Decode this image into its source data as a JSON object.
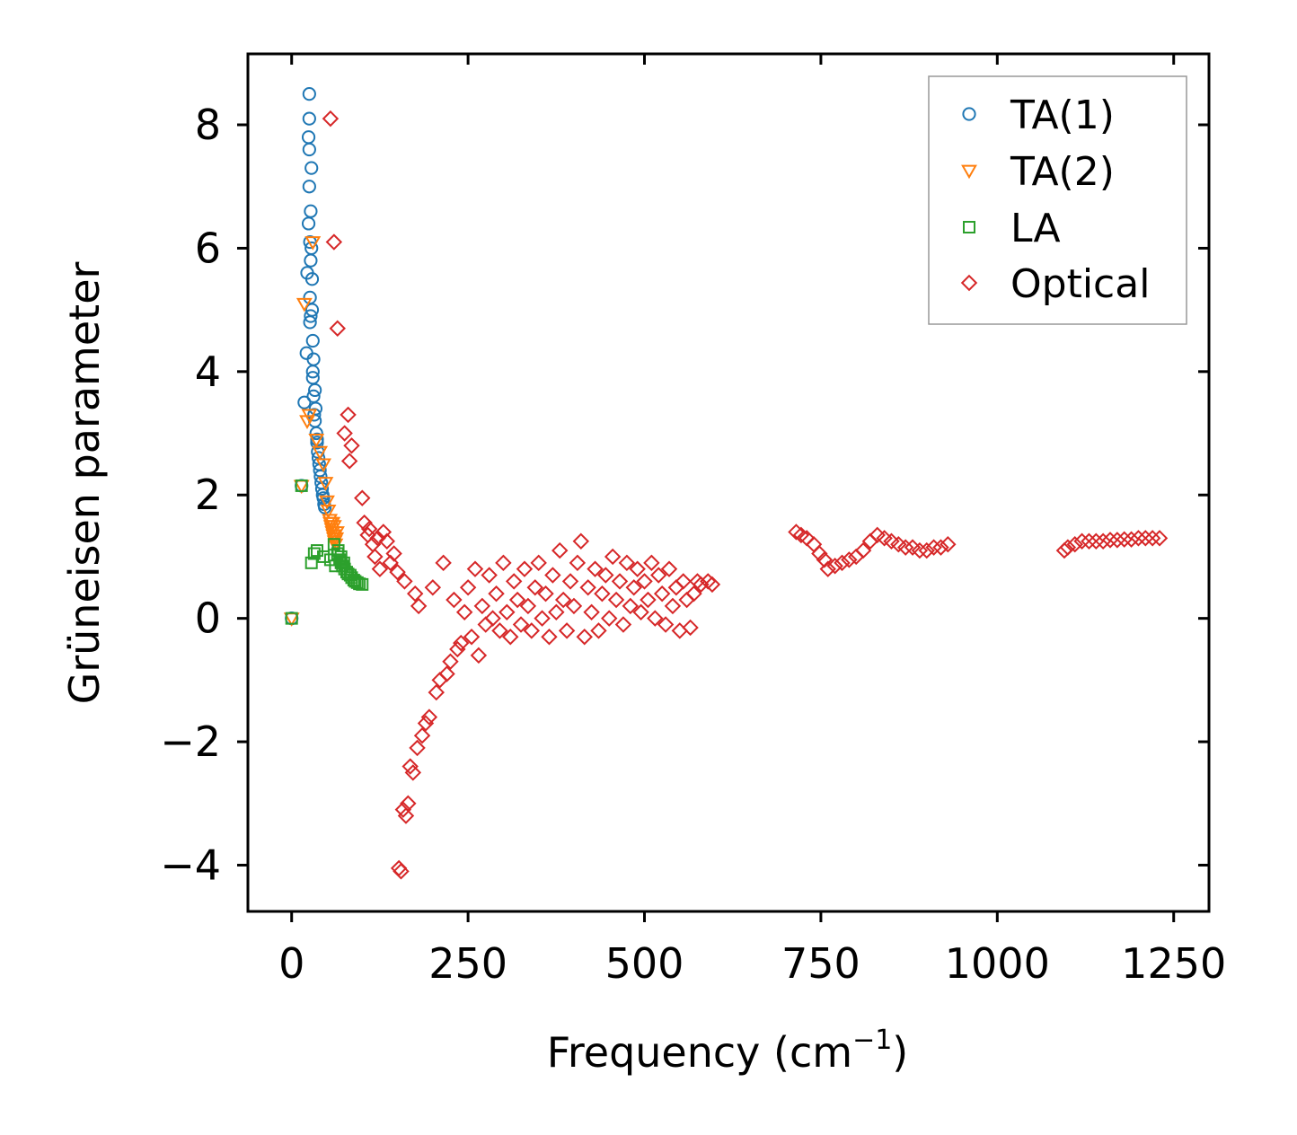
{
  "chart_data": {
    "type": "scatter",
    "title": "",
    "xlabel": "Frequency (cm",
    "xlabel_sup": "−1",
    "xlabel_tail": ")",
    "ylabel": "Grüneisen parameter",
    "xlim": [
      -62,
      1300
    ],
    "ylim": [
      -4.75,
      9.15
    ],
    "xticks": [
      0,
      250,
      500,
      750,
      1000,
      1250
    ],
    "xtick_labels": [
      "0",
      "250",
      "500",
      "750",
      "1000",
      "1250"
    ],
    "yticks": [
      -4,
      -2,
      0,
      2,
      4,
      6,
      8
    ],
    "ytick_labels": [
      "−4",
      "−2",
      "0",
      "2",
      "4",
      "6",
      "8"
    ],
    "grid": false,
    "legend_position": "top-right",
    "series": [
      {
        "name": "TA(1)",
        "marker": "circle",
        "color": "#1f77b4",
        "points": [
          [
            0,
            0
          ],
          [
            14,
            2.15
          ],
          [
            18,
            3.5
          ],
          [
            21,
            4.3
          ],
          [
            22,
            5.6
          ],
          [
            24,
            6.4
          ],
          [
            25,
            7.0
          ],
          [
            25,
            7.6
          ],
          [
            25,
            8.1
          ],
          [
            25,
            8.5
          ],
          [
            26,
            6.1
          ],
          [
            26,
            5.2
          ],
          [
            26,
            4.8
          ],
          [
            27,
            4.9
          ],
          [
            27,
            6.6
          ],
          [
            28,
            7.3
          ],
          [
            28,
            6.0
          ],
          [
            29,
            5.0
          ],
          [
            30,
            4.5
          ],
          [
            30,
            3.9
          ],
          [
            31,
            4.2
          ],
          [
            31,
            3.6
          ],
          [
            32,
            3.3
          ],
          [
            33,
            3.7
          ],
          [
            34,
            3.4
          ],
          [
            35,
            3.0
          ],
          [
            36,
            2.85
          ],
          [
            37,
            2.7
          ],
          [
            38,
            2.6
          ],
          [
            39,
            2.5
          ],
          [
            40,
            2.4
          ],
          [
            41,
            2.3
          ],
          [
            42,
            2.2
          ],
          [
            43,
            2.1
          ],
          [
            44,
            2.0
          ],
          [
            45,
            1.95
          ],
          [
            46,
            1.85
          ],
          [
            47,
            1.8
          ],
          [
            29,
            5.5
          ],
          [
            27,
            5.8
          ],
          [
            24,
            7.8
          ],
          [
            30,
            4.0
          ],
          [
            33,
            3.2
          ],
          [
            36,
            2.9
          ]
        ]
      },
      {
        "name": "TA(2)",
        "marker": "triangle-down",
        "color": "#ff7f0e",
        "points": [
          [
            0,
            0
          ],
          [
            14,
            2.15
          ],
          [
            18,
            5.1
          ],
          [
            22,
            3.2
          ],
          [
            25,
            3.3
          ],
          [
            30,
            6.1
          ],
          [
            35,
            2.9
          ],
          [
            40,
            2.7
          ],
          [
            45,
            2.5
          ],
          [
            48,
            2.2
          ],
          [
            50,
            1.9
          ],
          [
            52,
            1.75
          ],
          [
            54,
            1.6
          ],
          [
            55,
            1.55
          ],
          [
            56,
            1.5
          ],
          [
            57,
            1.45
          ],
          [
            58,
            1.4
          ],
          [
            59,
            1.35
          ],
          [
            60,
            1.3
          ],
          [
            61,
            1.25
          ],
          [
            62,
            1.2
          ],
          [
            63,
            1.3
          ],
          [
            64,
            1.4
          ],
          [
            60,
            1.5
          ],
          [
            58,
            1.55
          ]
        ]
      },
      {
        "name": "LA",
        "marker": "square",
        "color": "#2ca02c",
        "points": [
          [
            0,
            0
          ],
          [
            14,
            2.15
          ],
          [
            28,
            0.9
          ],
          [
            32,
            1.05
          ],
          [
            36,
            1.1
          ],
          [
            45,
            1.0
          ],
          [
            55,
            0.95
          ],
          [
            60,
            1.2
          ],
          [
            62,
            0.85
          ],
          [
            65,
            1.05
          ],
          [
            68,
            0.95
          ],
          [
            70,
            0.9
          ],
          [
            72,
            0.85
          ],
          [
            75,
            0.8
          ],
          [
            78,
            0.75
          ],
          [
            80,
            0.72
          ],
          [
            83,
            0.7
          ],
          [
            85,
            0.66
          ],
          [
            88,
            0.62
          ],
          [
            90,
            0.6
          ],
          [
            93,
            0.58
          ],
          [
            96,
            0.56
          ],
          [
            100,
            0.55
          ],
          [
            66,
            1.1
          ],
          [
            70,
            1.0
          ],
          [
            74,
            0.9
          ]
        ]
      },
      {
        "name": "Optical",
        "marker": "diamond",
        "color": "#d62728",
        "points": [
          [
            55,
            8.1
          ],
          [
            60,
            6.1
          ],
          [
            65,
            4.7
          ],
          [
            75,
            3.0
          ],
          [
            80,
            3.3
          ],
          [
            82,
            2.55
          ],
          [
            85,
            2.8
          ],
          [
            100,
            1.95
          ],
          [
            103,
            1.55
          ],
          [
            108,
            1.35
          ],
          [
            110,
            1.45
          ],
          [
            115,
            1.2
          ],
          [
            118,
            1.0
          ],
          [
            122,
            1.3
          ],
          [
            125,
            0.8
          ],
          [
            130,
            1.4
          ],
          [
            135,
            1.25
          ],
          [
            140,
            0.9
          ],
          [
            145,
            1.05
          ],
          [
            150,
            0.75
          ],
          [
            152,
            -4.05
          ],
          [
            155,
            -4.1
          ],
          [
            158,
            -3.1
          ],
          [
            160,
            0.6
          ],
          [
            162,
            -3.2
          ],
          [
            165,
            -3.0
          ],
          [
            168,
            -2.4
          ],
          [
            172,
            -2.5
          ],
          [
            175,
            0.4
          ],
          [
            178,
            -2.1
          ],
          [
            180,
            0.2
          ],
          [
            185,
            -1.9
          ],
          [
            190,
            -1.7
          ],
          [
            195,
            -1.6
          ],
          [
            200,
            0.5
          ],
          [
            205,
            -1.2
          ],
          [
            210,
            -1.0
          ],
          [
            215,
            0.9
          ],
          [
            220,
            -0.9
          ],
          [
            225,
            -0.7
          ],
          [
            230,
            0.3
          ],
          [
            235,
            -0.5
          ],
          [
            240,
            -0.4
          ],
          [
            245,
            0.1
          ],
          [
            250,
            0.5
          ],
          [
            255,
            -0.3
          ],
          [
            260,
            0.8
          ],
          [
            265,
            -0.6
          ],
          [
            270,
            0.2
          ],
          [
            275,
            -0.1
          ],
          [
            280,
            0.7
          ],
          [
            285,
            0.0
          ],
          [
            290,
            0.4
          ],
          [
            295,
            -0.2
          ],
          [
            300,
            0.9
          ],
          [
            305,
            0.1
          ],
          [
            310,
            -0.3
          ],
          [
            315,
            0.6
          ],
          [
            320,
            0.3
          ],
          [
            325,
            -0.1
          ],
          [
            330,
            0.8
          ],
          [
            335,
            0.2
          ],
          [
            340,
            -0.2
          ],
          [
            345,
            0.5
          ],
          [
            350,
            0.9
          ],
          [
            355,
            0.0
          ],
          [
            360,
            0.4
          ],
          [
            365,
            -0.3
          ],
          [
            370,
            0.7
          ],
          [
            375,
            0.1
          ],
          [
            380,
            1.1
          ],
          [
            385,
            0.3
          ],
          [
            390,
            -0.2
          ],
          [
            395,
            0.6
          ],
          [
            400,
            0.2
          ],
          [
            405,
            0.9
          ],
          [
            410,
            1.25
          ],
          [
            415,
            -0.3
          ],
          [
            420,
            0.5
          ],
          [
            425,
            0.1
          ],
          [
            430,
            0.8
          ],
          [
            435,
            -0.2
          ],
          [
            440,
            0.4
          ],
          [
            445,
            0.7
          ],
          [
            450,
            0.0
          ],
          [
            455,
            1.0
          ],
          [
            460,
            0.3
          ],
          [
            465,
            0.6
          ],
          [
            470,
            -0.1
          ],
          [
            475,
            0.9
          ],
          [
            480,
            0.2
          ],
          [
            485,
            0.5
          ],
          [
            490,
            0.8
          ],
          [
            495,
            0.1
          ],
          [
            500,
            0.6
          ],
          [
            505,
            0.3
          ],
          [
            510,
            0.9
          ],
          [
            515,
            0.0
          ],
          [
            520,
            0.7
          ],
          [
            525,
            0.4
          ],
          [
            530,
            -0.1
          ],
          [
            535,
            0.8
          ],
          [
            540,
            0.2
          ],
          [
            545,
            0.5
          ],
          [
            550,
            -0.2
          ],
          [
            555,
            0.6
          ],
          [
            560,
            0.3
          ],
          [
            565,
            -0.15
          ],
          [
            570,
            0.4
          ],
          [
            575,
            0.6
          ],
          [
            580,
            0.55
          ],
          [
            590,
            0.6
          ],
          [
            596,
            0.55
          ],
          [
            715,
            1.4
          ],
          [
            722,
            1.35
          ],
          [
            730,
            1.3
          ],
          [
            740,
            1.2
          ],
          [
            748,
            1.05
          ],
          [
            755,
            0.95
          ],
          [
            760,
            0.8
          ],
          [
            770,
            0.85
          ],
          [
            780,
            0.9
          ],
          [
            790,
            0.95
          ],
          [
            800,
            1.0
          ],
          [
            810,
            1.1
          ],
          [
            820,
            1.25
          ],
          [
            830,
            1.35
          ],
          [
            840,
            1.3
          ],
          [
            850,
            1.25
          ],
          [
            860,
            1.2
          ],
          [
            870,
            1.15
          ],
          [
            880,
            1.15
          ],
          [
            890,
            1.1
          ],
          [
            900,
            1.1
          ],
          [
            910,
            1.15
          ],
          [
            920,
            1.15
          ],
          [
            930,
            1.2
          ],
          [
            1095,
            1.1
          ],
          [
            1100,
            1.15
          ],
          [
            1110,
            1.2
          ],
          [
            1120,
            1.25
          ],
          [
            1130,
            1.25
          ],
          [
            1140,
            1.25
          ],
          [
            1150,
            1.25
          ],
          [
            1160,
            1.27
          ],
          [
            1170,
            1.27
          ],
          [
            1180,
            1.28
          ],
          [
            1190,
            1.28
          ],
          [
            1200,
            1.3
          ],
          [
            1210,
            1.3
          ],
          [
            1220,
            1.3
          ],
          [
            1230,
            1.3
          ]
        ]
      }
    ]
  }
}
